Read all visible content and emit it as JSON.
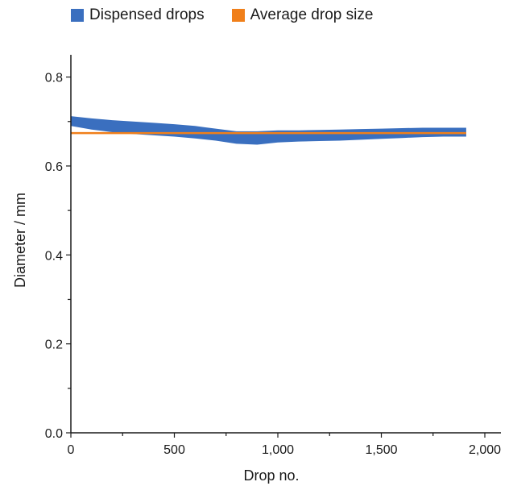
{
  "chart_data": {
    "type": "line",
    "xlabel": "Drop no.",
    "ylabel": "Diameter / mm",
    "xlim": [
      0,
      2000
    ],
    "ylim": [
      0.0,
      0.85
    ],
    "x_ticks": [
      0,
      500,
      1000,
      1500,
      2000
    ],
    "x_tick_labels": [
      "0",
      "500",
      "1,000",
      "1,500",
      "2,000"
    ],
    "y_ticks": [
      0.0,
      0.2,
      0.4,
      0.6,
      0.8
    ],
    "y_tick_labels": [
      "0.0",
      "0.2",
      "0.4",
      "0.6",
      "0.8"
    ],
    "grid": false,
    "legend_position": "top",
    "series": [
      {
        "name": "Dispensed drops",
        "color": "#3a6fbf",
        "style": "band",
        "x": [
          0,
          100,
          200,
          300,
          400,
          500,
          600,
          700,
          800,
          900,
          1000,
          1100,
          1200,
          1300,
          1400,
          1500,
          1600,
          1700,
          1800,
          1910
        ],
        "upper": [
          0.712,
          0.707,
          0.703,
          0.7,
          0.697,
          0.694,
          0.69,
          0.684,
          0.678,
          0.678,
          0.68,
          0.68,
          0.681,
          0.682,
          0.683,
          0.684,
          0.685,
          0.686,
          0.686,
          0.686
        ],
        "lower": [
          0.69,
          0.682,
          0.676,
          0.672,
          0.669,
          0.666,
          0.662,
          0.657,
          0.65,
          0.648,
          0.653,
          0.655,
          0.656,
          0.657,
          0.659,
          0.661,
          0.663,
          0.665,
          0.666,
          0.666
        ]
      },
      {
        "name": "Average drop size",
        "color": "#f07f1a",
        "style": "line",
        "x": [
          0,
          1910
        ],
        "values": [
          0.674,
          0.674
        ]
      }
    ]
  }
}
